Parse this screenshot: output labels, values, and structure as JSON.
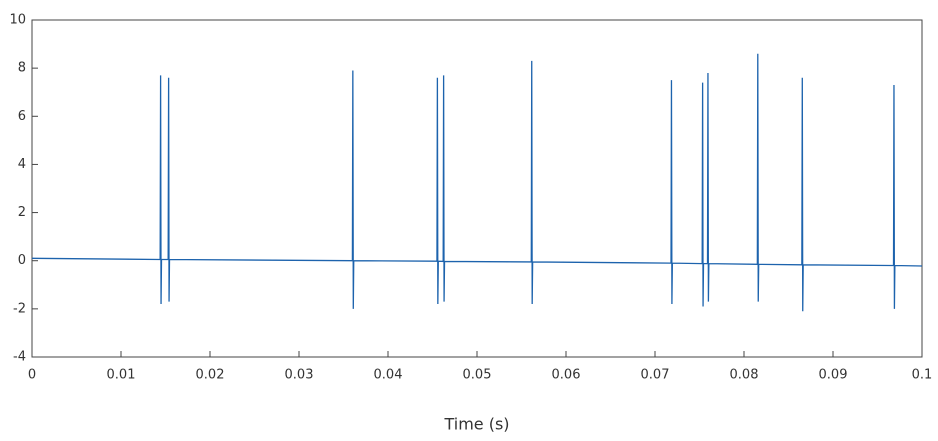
{
  "chart_data": {
    "type": "line",
    "x_label": "Time (s)",
    "color": "#1d63ad",
    "x": [
      0,
      0.0144,
      0.01445,
      0.0145,
      0.01455,
      0.0153,
      0.01535,
      0.0154,
      0.01545,
      0.036,
      0.03605,
      0.0361,
      0.03615,
      0.0455,
      0.04555,
      0.0456,
      0.04565,
      0.0462,
      0.04625,
      0.0463,
      0.04635,
      0.0561,
      0.05615,
      0.0562,
      0.05625,
      0.0718,
      0.07185,
      0.0719,
      0.07195,
      0.0753,
      0.07535,
      0.0754,
      0.07545,
      0.0759,
      0.07595,
      0.076,
      0.07605,
      0.0815,
      0.08155,
      0.0816,
      0.08165,
      0.0865,
      0.08655,
      0.0866,
      0.08665,
      0.0968,
      0.09685,
      0.0969,
      0.09695,
      0.1
    ],
    "values": [
      0.1,
      0.05,
      7.7,
      -1.8,
      0.05,
      0.05,
      7.6,
      -1.7,
      0.05,
      0.0,
      7.9,
      -2.0,
      0.0,
      -0.02,
      7.6,
      -1.8,
      -0.02,
      -0.03,
      7.7,
      -1.7,
      -0.03,
      -0.05,
      8.3,
      -1.8,
      -0.05,
      -0.1,
      7.5,
      -1.8,
      -0.1,
      -0.12,
      7.4,
      -1.9,
      -0.12,
      -0.12,
      7.8,
      -1.7,
      -0.12,
      -0.15,
      8.6,
      -1.7,
      -0.15,
      -0.17,
      7.6,
      -2.1,
      -0.17,
      -0.2,
      7.3,
      -2.0,
      -0.2,
      -0.22
    ],
    "xlim": [
      0,
      0.1
    ],
    "xticks": [
      0,
      0.01,
      0.02,
      0.03,
      0.04,
      0.05,
      0.06,
      0.07,
      0.08,
      0.09,
      0.1
    ],
    "ylim": [
      -4,
      10
    ],
    "yticks": [
      -4,
      -2,
      0,
      2,
      4,
      6,
      8,
      10
    ]
  }
}
